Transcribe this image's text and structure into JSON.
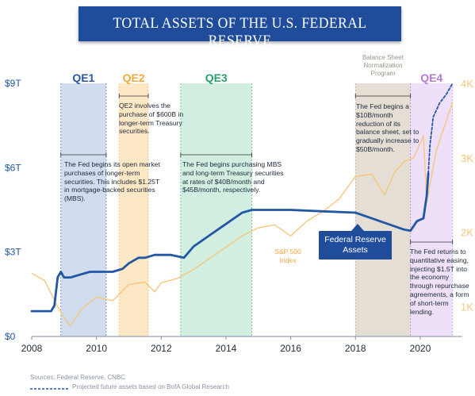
{
  "title": "TOTAL ASSETS OF THE U.S. FEDERAL RESERVE",
  "colors": {
    "fed_line": "#2257a4",
    "sp_line": "#f5c77e",
    "banner": "#1f4d9b"
  },
  "programs": [
    {
      "label": "QE1",
      "color": "#2a55a8",
      "fill": "#c6d4ea",
      "from": 2008.9,
      "to": 2010.3
    },
    {
      "label": "QE2",
      "color": "#f0a83a",
      "fill": "#fde2b8",
      "from": 2010.7,
      "to": 2011.6
    },
    {
      "label": "QE3",
      "color": "#28a06a",
      "fill": "#c5ead8",
      "from": 2012.6,
      "to": 2014.8
    },
    {
      "label": "Balance Sheet Normalization Program",
      "color": "#9c9588",
      "fill": "#ddd6ca",
      "from": 2018.0,
      "to": 2019.7
    },
    {
      "label": "QE4",
      "color": "#b57ad6",
      "fill": "#ead8f7",
      "from": 2019.7,
      "to": 2021.0
    }
  ],
  "annotations": {
    "qe1": "The Fed begins its open market purchases of longer-term securities. This includes $1.25T in mortgage-backed securities (MBS).",
    "qe2": "QE2 involves the purchase of $600B in longer-term Treasury securities.",
    "qe3": "The Fed begins purchasing MBS and long-term Treasury securities at rates of $40B/month and $45B/month, respectively.",
    "normalization": "The Fed begins a $10B/month reduction of its balance sheet, set to gradually increase to $50B/month.",
    "qe4": "The Fed returns to quantitative easing, injecting $1.5T into the economy through repurchase agreements, a form of short-term lending."
  },
  "sources": "Sources: Federal Reserve, CNBC",
  "legend_projection": "Projected future assets based on BofA Global Research",
  "chart_data": {
    "type": "line",
    "x_ticks": [
      "2008",
      "2010",
      "2012",
      "2014",
      "2016",
      "2018",
      "2020"
    ],
    "xlim": [
      2008,
      2021.3
    ],
    "left_axis": {
      "ticks": [
        "$0",
        "$3T",
        "$6T",
        "$9T"
      ],
      "values": [
        0,
        3,
        6,
        9
      ],
      "ylim": [
        0,
        9
      ]
    },
    "right_axis": {
      "ticks": [
        "1K",
        "2K",
        "3K",
        "4K"
      ],
      "values": [
        1000,
        2000,
        3000,
        4000
      ],
      "ylim": [
        600,
        4000
      ]
    },
    "series": [
      {
        "name": "Federal Reserve Assets",
        "axis": "left",
        "color": "#2257a4",
        "x": [
          2008.0,
          2008.6,
          2008.7,
          2008.8,
          2008.9,
          2009.0,
          2009.2,
          2009.5,
          2009.8,
          2010.0,
          2010.5,
          2010.8,
          2011.0,
          2011.3,
          2011.5,
          2011.8,
          2012.0,
          2012.3,
          2012.7,
          2013.0,
          2013.5,
          2014.0,
          2014.5,
          2014.8,
          2015.0,
          2016.0,
          2017.0,
          2018.0,
          2018.5,
          2019.0,
          2019.5,
          2019.7,
          2019.9,
          2020.1,
          2020.2,
          2020.25
        ],
        "y": [
          0.9,
          0.9,
          1.1,
          2.1,
          2.3,
          2.1,
          2.1,
          2.2,
          2.3,
          2.3,
          2.3,
          2.4,
          2.6,
          2.8,
          2.8,
          2.9,
          2.9,
          2.9,
          2.8,
          3.2,
          3.6,
          4.0,
          4.4,
          4.5,
          4.5,
          4.5,
          4.45,
          4.4,
          4.2,
          4.0,
          3.8,
          3.76,
          4.1,
          4.2,
          5.0,
          5.8
        ]
      },
      {
        "name": "Projected future assets",
        "axis": "left",
        "color": "#2257a4",
        "dashed": true,
        "x": [
          2020.25,
          2020.3,
          2020.4,
          2020.6,
          2020.8,
          2021.0
        ],
        "y": [
          5.8,
          6.8,
          7.8,
          8.3,
          8.6,
          9.0
        ]
      },
      {
        "name": "S&P 500 Index",
        "axis": "right",
        "color": "#f5c77e",
        "x": [
          2008.0,
          2008.4,
          2008.8,
          2009.0,
          2009.2,
          2009.5,
          2010.0,
          2010.5,
          2011.0,
          2011.5,
          2011.8,
          2012.0,
          2012.5,
          2013.0,
          2013.5,
          2014.0,
          2014.5,
          2015.0,
          2015.5,
          2016.0,
          2016.5,
          2017.0,
          2017.5,
          2018.0,
          2018.5,
          2018.9,
          2019.2,
          2019.5,
          2019.8,
          2020.1,
          2020.2,
          2020.5,
          2021.0
        ],
        "y": [
          1450,
          1350,
          1000,
          850,
          740,
          950,
          1130,
          1080,
          1300,
          1330,
          1200,
          1320,
          1380,
          1500,
          1650,
          1800,
          1950,
          2060,
          2100,
          1950,
          2150,
          2280,
          2450,
          2750,
          2780,
          2500,
          2800,
          2950,
          3000,
          3300,
          2400,
          3100,
          3750
        ]
      }
    ],
    "labels": {
      "sp500": "S&P 500 Index",
      "fed": "Federal Reserve Assets"
    }
  }
}
